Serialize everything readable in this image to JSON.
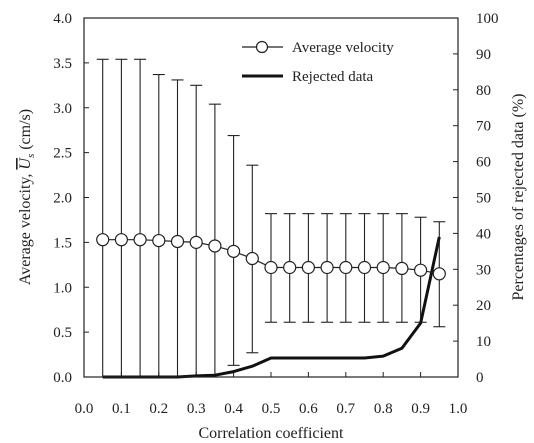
{
  "chart_data": {
    "type": "line",
    "xlabel": "Correlation coefficient",
    "ylabel_left_prefix": "Average velocity, ",
    "ylabel_left_symbol_main": "U",
    "ylabel_left_symbol_sub": "s",
    "ylabel_left_unit": " (cm/s)",
    "ylabel_right": "Percentages of rejected data (%)",
    "xlim": [
      0.0,
      1.0
    ],
    "ylim_left": [
      0.0,
      4.0
    ],
    "ylim_right": [
      0,
      100
    ],
    "x_ticks": [
      "0.0",
      "0.1",
      "0.2",
      "0.3",
      "0.4",
      "0.5",
      "0.6",
      "0.7",
      "0.8",
      "0.9",
      "1.0"
    ],
    "y_left_ticks": [
      "0.0",
      "0.5",
      "1.0",
      "1.5",
      "2.0",
      "2.5",
      "3.0",
      "3.5",
      "4.0"
    ],
    "y_right_ticks": [
      "0",
      "10",
      "20",
      "30",
      "40",
      "50",
      "60",
      "70",
      "80",
      "90",
      "100"
    ],
    "legend_position": "top-right",
    "series": [
      {
        "name": "Average velocity",
        "axis": "left",
        "marker": "open-circle",
        "x": [
          0.05,
          0.1,
          0.15,
          0.2,
          0.25,
          0.3,
          0.35,
          0.4,
          0.45,
          0.5,
          0.55,
          0.6,
          0.65,
          0.7,
          0.75,
          0.8,
          0.85,
          0.9,
          0.95
        ],
        "y": [
          1.53,
          1.53,
          1.53,
          1.52,
          1.51,
          1.5,
          1.46,
          1.4,
          1.32,
          1.22,
          1.22,
          1.22,
          1.22,
          1.22,
          1.22,
          1.22,
          1.21,
          1.19,
          1.15
        ],
        "error_upper": [
          3.54,
          3.54,
          3.54,
          3.37,
          3.31,
          3.25,
          3.04,
          2.69,
          2.36,
          1.82,
          1.82,
          1.82,
          1.82,
          1.82,
          1.82,
          1.82,
          1.82,
          1.78,
          1.73
        ],
        "error_lower": [
          0.0,
          0.0,
          0.0,
          0.0,
          0.0,
          0.0,
          0.0,
          0.13,
          0.27,
          0.61,
          0.61,
          0.61,
          0.61,
          0.61,
          0.61,
          0.61,
          0.61,
          0.61,
          0.56
        ]
      },
      {
        "name": "Rejected data",
        "axis": "right",
        "marker": "none",
        "x": [
          0.05,
          0.1,
          0.15,
          0.2,
          0.25,
          0.3,
          0.35,
          0.4,
          0.45,
          0.5,
          0.55,
          0.6,
          0.65,
          0.7,
          0.75,
          0.8,
          0.85,
          0.9,
          0.95
        ],
        "y": [
          0.0,
          0.0,
          0.0,
          0.0,
          0.0,
          0.3,
          0.5,
          1.5,
          3.0,
          5.3,
          5.3,
          5.3,
          5.3,
          5.3,
          5.3,
          5.8,
          8.0,
          15.0,
          39.0
        ]
      }
    ]
  }
}
